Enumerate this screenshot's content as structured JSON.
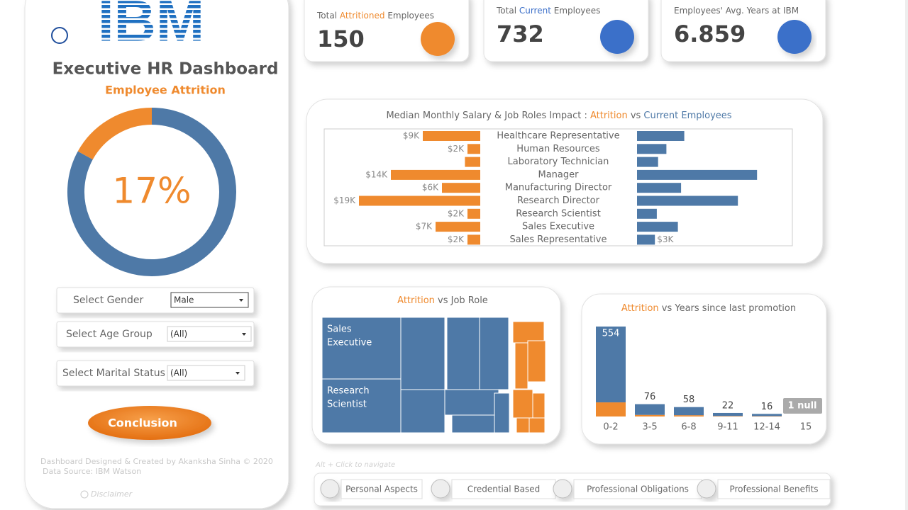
{
  "sidebar": {
    "logo": "IBM",
    "title": "Executive HR Dashboard",
    "subtitle": "Employee Attrition",
    "donut": {
      "values": [
        17,
        83
      ],
      "value_label": "17%",
      "colors": [
        "#ef8a2e",
        "#4e79a7"
      ]
    },
    "filters": [
      {
        "label": "Select Gender",
        "value": "Male"
      },
      {
        "label": "Select Age Group",
        "value": "(All)"
      },
      {
        "label": "Select Marital Status",
        "value": "(All)"
      }
    ],
    "button": "Conclusion",
    "footer": [
      "Dashboard Designed & Created by Akanksha Sinha © 2020",
      "Data Source: IBM Watson"
    ],
    "disclaimer": "Disclaimer"
  },
  "kpis": [
    {
      "label": [
        "Total ",
        "Attritioned",
        " Employees"
      ],
      "value": 150,
      "color": "#ef8a2e"
    },
    {
      "label": [
        "Total ",
        "Current",
        " Employees"
      ],
      "value": 732,
      "color": "#3b6fc9"
    },
    {
      "label": [
        "Employees' Avg. Years at IBM"
      ],
      "value": 6.859,
      "color": "#3b6fc9"
    }
  ],
  "salary": {
    "title": [
      "Median Monthly Salary & Job Roles Impact : ",
      "Attrition",
      " vs ",
      "Current Employees"
    ],
    "categories": [
      "Healthcare Representative",
      "Human Resources",
      "Laboratory Technician",
      "Manager",
      "Manufacturing Director",
      "Research Director",
      "Research Scientist",
      "Sales Executive",
      "Sales Representative"
    ],
    "series": [
      {
        "color": "#ef8a2e",
        "values": [
          9000,
          2000,
          2400,
          14000,
          6000,
          19000,
          2000,
          7000,
          2000
        ],
        "value_labels": [
          "$9K",
          "$2K",
          null,
          "$14K",
          "$6K",
          "$19K",
          "$2K",
          "$7K",
          "$2K"
        ]
      },
      {
        "color": "#4e79a7",
        "values": [
          7400,
          4600,
          3300,
          18800,
          6900,
          15800,
          3100,
          6400,
          2800
        ],
        "value_labels": [
          null,
          null,
          null,
          null,
          null,
          null,
          null,
          null,
          "$3K"
        ]
      }
    ]
  },
  "treemap": {
    "title": [
      "Attrition",
      " vs Job Role"
    ],
    "labels": [
      [
        "Sales",
        "Executive"
      ],
      [
        "Research",
        "Scientist"
      ]
    ]
  },
  "promotion": {
    "title": [
      "Attrition",
      " vs Years since last promotion"
    ],
    "categories": [
      "0-2",
      "3-5",
      "6-8",
      "9-11",
      "12-14",
      "15"
    ],
    "series": [
      {
        "color": "#ef8a2e",
        "values": [
          87,
          10,
          8,
          3,
          2,
          null
        ]
      },
      {
        "color": "#4e79a7",
        "values": [
          467,
          66,
          50,
          19,
          14,
          null
        ]
      }
    ],
    "totals": [
      554,
      76,
      58,
      22,
      16,
      null
    ],
    "null_indicator": "1 null"
  },
  "hint": "Alt + Click to navigate",
  "nav": [
    "Personal Aspects",
    "Credential Based",
    "Professional Obligations",
    "Professional Benefits"
  ]
}
